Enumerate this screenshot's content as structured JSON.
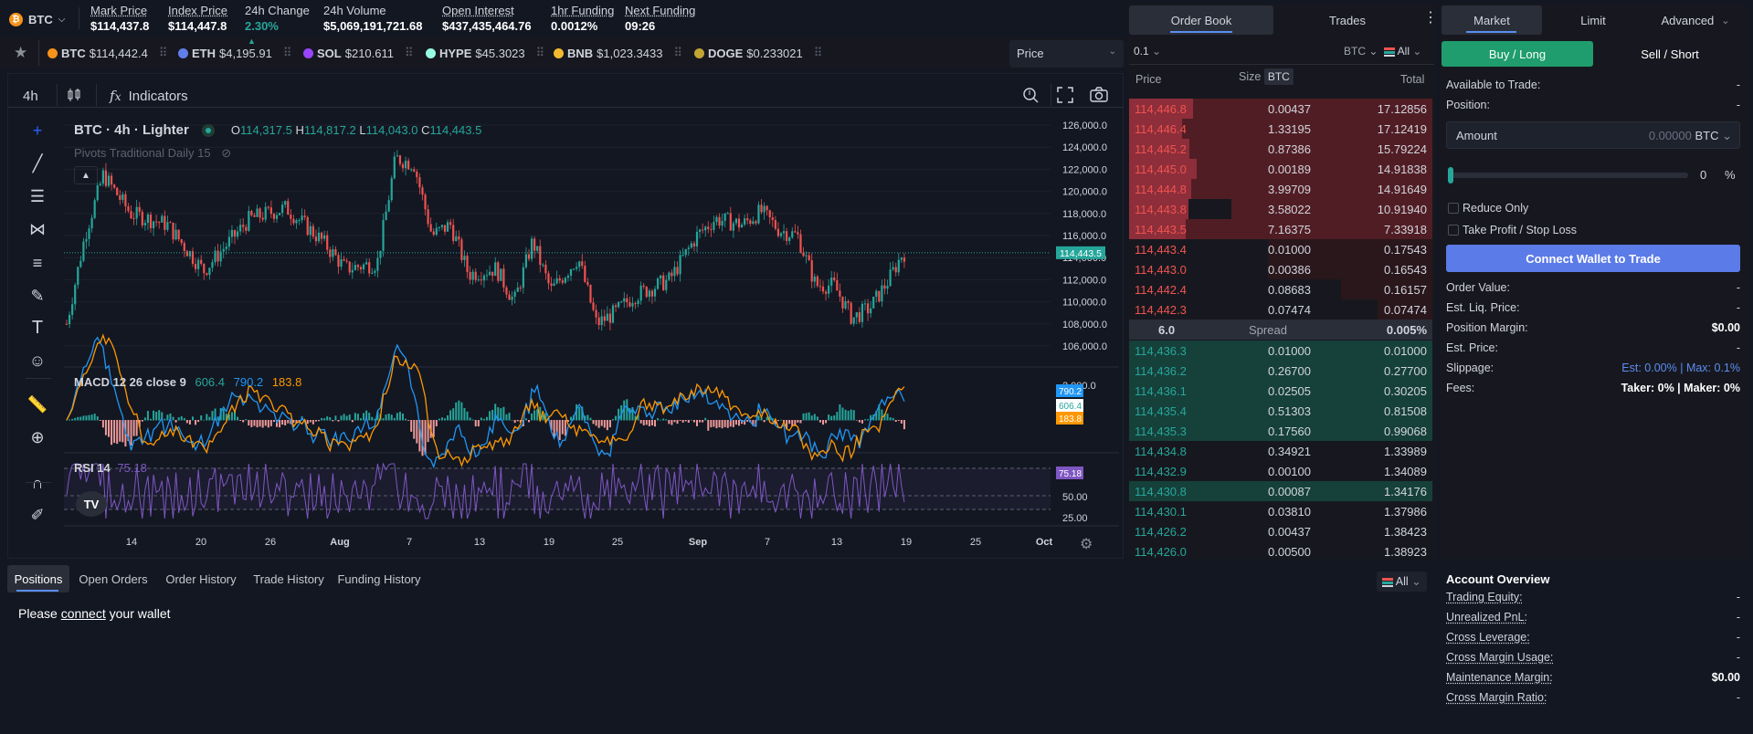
{
  "ticker": {
    "symbol": "BTC",
    "stats": [
      {
        "label": "Mark Price",
        "value": "$114,437.8"
      },
      {
        "label": "Index Price",
        "value": "$114,447.8"
      },
      {
        "label": "24h Change",
        "value": "2.30%"
      },
      {
        "label": "24h Volume",
        "value": "$5,069,191,721.68"
      },
      {
        "label": "Open Interest",
        "value": "$437,435,464.76"
      },
      {
        "label": "1hr Funding",
        "value": "0.0012%"
      },
      {
        "label": "Next Funding",
        "value": "09:26"
      }
    ]
  },
  "watchlist": [
    {
      "sym": "BTC",
      "price": "$114,442.4",
      "color": "#f7931a"
    },
    {
      "sym": "ETH",
      "price": "$4,195.91",
      "color": "#627eea"
    },
    {
      "sym": "SOL",
      "price": "$210.611",
      "color": "#9945ff"
    },
    {
      "sym": "HYPE",
      "price": "$45.3023",
      "color": "#98fce4"
    },
    {
      "sym": "BNB",
      "price": "$1,023.3433",
      "color": "#f3ba2f"
    },
    {
      "sym": "DOGE",
      "price": "$0.233021",
      "color": "#c2a633"
    }
  ],
  "price_select": "Price",
  "chart_toolbar": {
    "interval": "4h",
    "indicators": "Indicators"
  },
  "legend": {
    "title": "BTC · 4h · Lighter",
    "o_label": "O",
    "o": "114,317.5",
    "h_label": "H",
    "h": "114,817.2",
    "l_label": "L",
    "l": "114,043.0",
    "c_label": "C",
    "c": "114,443.5",
    "pivots": "Pivots Traditional Daily 15"
  },
  "macd": {
    "label": "MACD 12 26 close 9",
    "v1": "606.4",
    "v2": "790.2",
    "v3": "183.8",
    "axis": "2,000.0"
  },
  "rsi": {
    "label": "RSI 14",
    "value": "75.18",
    "axis": [
      "50.00",
      "25.00"
    ]
  },
  "price_axis": [
    "126,000.0",
    "124,000.0",
    "122,000.0",
    "120,000.0",
    "118,000.0",
    "116,000.0",
    "114,000.0",
    "112,000.0",
    "110,000.0",
    "108,000.0",
    "106,000.0"
  ],
  "last_price_tag": "114,443.5",
  "time_axis": [
    "14",
    "20",
    "26",
    "Aug",
    "7",
    "13",
    "19",
    "25",
    "Sep",
    "7",
    "13",
    "19",
    "25",
    "Oct"
  ],
  "orderbook": {
    "tab_book": "Order Book",
    "tab_trades": "Trades",
    "tick": "0.1",
    "asset": "BTC",
    "filter": "All",
    "h_price": "Price",
    "h_size": "Size",
    "h_size_unit": "BTC",
    "h_total": "Total",
    "asks": [
      [
        "114,446.8",
        "0.00437",
        "17.12856"
      ],
      [
        "114,446.4",
        "1.33195",
        "17.12419"
      ],
      [
        "114,445.2",
        "0.87386",
        "15.79224"
      ],
      [
        "114,445.0",
        "0.00189",
        "14.91838"
      ],
      [
        "114,444.8",
        "3.99709",
        "14.91649"
      ],
      [
        "114,443.8",
        "3.58022",
        "10.91940"
      ],
      [
        "114,443.5",
        "7.16375",
        "7.33918"
      ],
      [
        "114,443.4",
        "0.01000",
        "0.17543"
      ],
      [
        "114,443.0",
        "0.00386",
        "0.16543"
      ],
      [
        "114,442.4",
        "0.08683",
        "0.16157"
      ],
      [
        "114,442.3",
        "0.07474",
        "0.07474"
      ]
    ],
    "spread": {
      "value": "6.0",
      "label": "Spread",
      "pct": "0.005%"
    },
    "bids": [
      [
        "114,436.3",
        "0.01000",
        "0.01000"
      ],
      [
        "114,436.2",
        "0.26700",
        "0.27700"
      ],
      [
        "114,436.1",
        "0.02505",
        "0.30205"
      ],
      [
        "114,435.4",
        "0.51303",
        "0.81508"
      ],
      [
        "114,435.3",
        "0.17560",
        "0.99068"
      ],
      [
        "114,434.8",
        "0.34921",
        "1.33989"
      ],
      [
        "114,432.9",
        "0.00100",
        "1.34089"
      ],
      [
        "114,430.8",
        "0.00087",
        "1.34176"
      ],
      [
        "114,430.1",
        "0.03810",
        "1.37986"
      ],
      [
        "114,426.2",
        "0.00437",
        "1.38423"
      ],
      [
        "114,426.0",
        "0.00500",
        "1.38923"
      ]
    ]
  },
  "order_form": {
    "tab_market": "Market",
    "tab_limit": "Limit",
    "tab_advanced": "Advanced",
    "buy": "Buy / Long",
    "sell": "Sell / Short",
    "available": "Available to Trade:",
    "available_v": "-",
    "position": "Position:",
    "position_v": "-",
    "amount": "Amount",
    "amount_v": "0.00000",
    "amount_unit": "BTC",
    "slider_v": "0",
    "slider_unit": "%",
    "reduce": "Reduce Only",
    "tpsl": "Take Profit / Stop Loss",
    "connect": "Connect Wallet to Trade",
    "rows": [
      [
        "Order Value:",
        "-"
      ],
      [
        "Est. Liq. Price:",
        "-"
      ],
      [
        "Position Margin:",
        "$0.00"
      ],
      [
        "Est. Price:",
        "-"
      ]
    ],
    "slippage": "Slippage:",
    "slip_est": "Est: 0.00%",
    "slip_max": "Max: 0.1%",
    "fees": "Fees:",
    "fee_taker": "Taker: 0%",
    "fee_maker": "Maker: 0%"
  },
  "bottom_tabs": [
    "Positions",
    "Open Orders",
    "Order History",
    "Trade History",
    "Funding History"
  ],
  "bottom_filter": "All",
  "empty_pre": "Please",
  "empty_link": "connect",
  "empty_post": "your wallet",
  "account": {
    "title": "Account Overview",
    "rows": [
      [
        "Trading Equity:",
        "-"
      ],
      [
        "Unrealized PnL:",
        "-"
      ],
      [
        "Cross Leverage:",
        "-"
      ],
      [
        "Cross Margin Usage:",
        "-"
      ],
      [
        "Maintenance Margin:",
        "$0.00"
      ],
      [
        "Cross Margin Ratio:",
        "-"
      ]
    ]
  }
}
